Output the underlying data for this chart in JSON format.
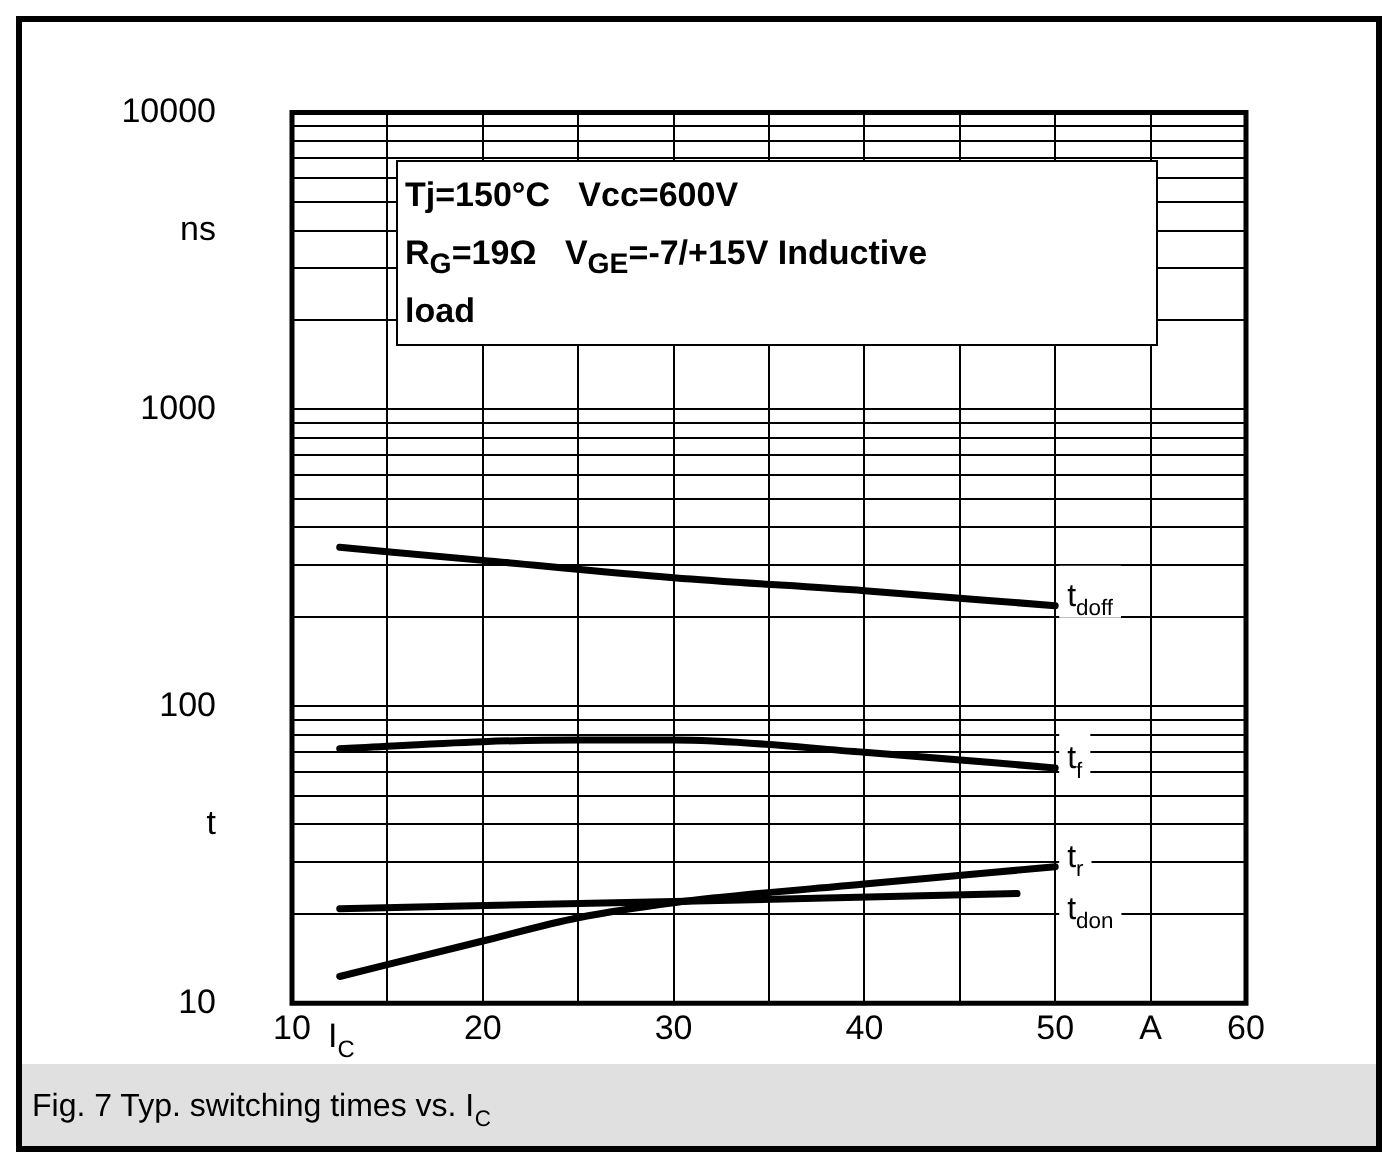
{
  "chart_data": {
    "type": "line",
    "title": "Fig. 7 Typ. switching times vs. I$_{C}$",
    "xlabel": "I$_{C}$",
    "annotations": [
      "Tj=150°C   Vcc=600V",
      "R$_{G}$=19Ω   V$_{GE}$=-7/+15V Inductive",
      "load"
    ],
    "log": "y",
    "grid": true,
    "legend": false,
    "marker": "none",
    "line_style": "solid",
    "xlim": [
      10,
      60
    ],
    "xticks": [
      10,
      {
        "value": 15,
        "label": null
      },
      20,
      {
        "value": 25,
        "label": null
      },
      30,
      {
        "value": 35,
        "label": null
      },
      40,
      {
        "value": 45,
        "label": null
      },
      50,
      {
        "value": 55,
        "label": "A"
      },
      60
    ],
    "ylim": [
      10,
      10000
    ],
    "yticks": [
      10,
      {
        "value": 20,
        "label": null
      },
      {
        "value": 30,
        "label": null
      },
      {
        "value": 40,
        "label": "t"
      },
      {
        "value": 50,
        "label": null
      },
      {
        "value": 60,
        "label": null
      },
      {
        "value": 70,
        "label": null
      },
      {
        "value": 80,
        "label": null
      },
      {
        "value": 90,
        "label": null
      },
      100,
      {
        "value": 200,
        "label": null
      },
      {
        "value": 300,
        "label": null
      },
      {
        "value": 400,
        "label": null
      },
      {
        "value": 500,
        "label": null
      },
      {
        "value": 600,
        "label": null
      },
      {
        "value": 700,
        "label": null
      },
      {
        "value": 800,
        "label": null
      },
      {
        "value": 900,
        "label": null
      },
      1000,
      {
        "value": 2000,
        "label": null
      },
      {
        "value": 3000,
        "label": null
      },
      {
        "value": 4000,
        "label": "ns"
      },
      {
        "value": 5000,
        "label": null
      },
      {
        "value": 6000,
        "label": null
      },
      {
        "value": 7000,
        "label": null
      },
      {
        "value": 8000,
        "label": null
      },
      {
        "value": 9000,
        "label": null
      },
      10000
    ],
    "series": [
      {
        "name": "t$_{doff}$",
        "color": "#000000",
        "x": [
          12.5,
          20,
          30,
          40,
          50
        ],
        "values": [
          343,
          310,
          271,
          245,
          218
        ]
      },
      {
        "name": "t$_{f}$",
        "color": "#000000",
        "x": [
          12.5,
          20,
          25,
          30,
          40,
          50
        ],
        "values": [
          72,
          76,
          77,
          77,
          70,
          62
        ]
      },
      {
        "name": "t$_{r}$",
        "color": "#000000",
        "x": [
          12.5,
          20,
          25,
          30,
          40,
          50
        ],
        "values": [
          12.3,
          16.2,
          19.4,
          21.8,
          25.2,
          28.8
        ]
      },
      {
        "name": "t$_{don}$",
        "color": "#000000",
        "x": [
          12.5,
          30,
          48
        ],
        "values": [
          20.8,
          22,
          23.4
        ]
      }
    ]
  }
}
